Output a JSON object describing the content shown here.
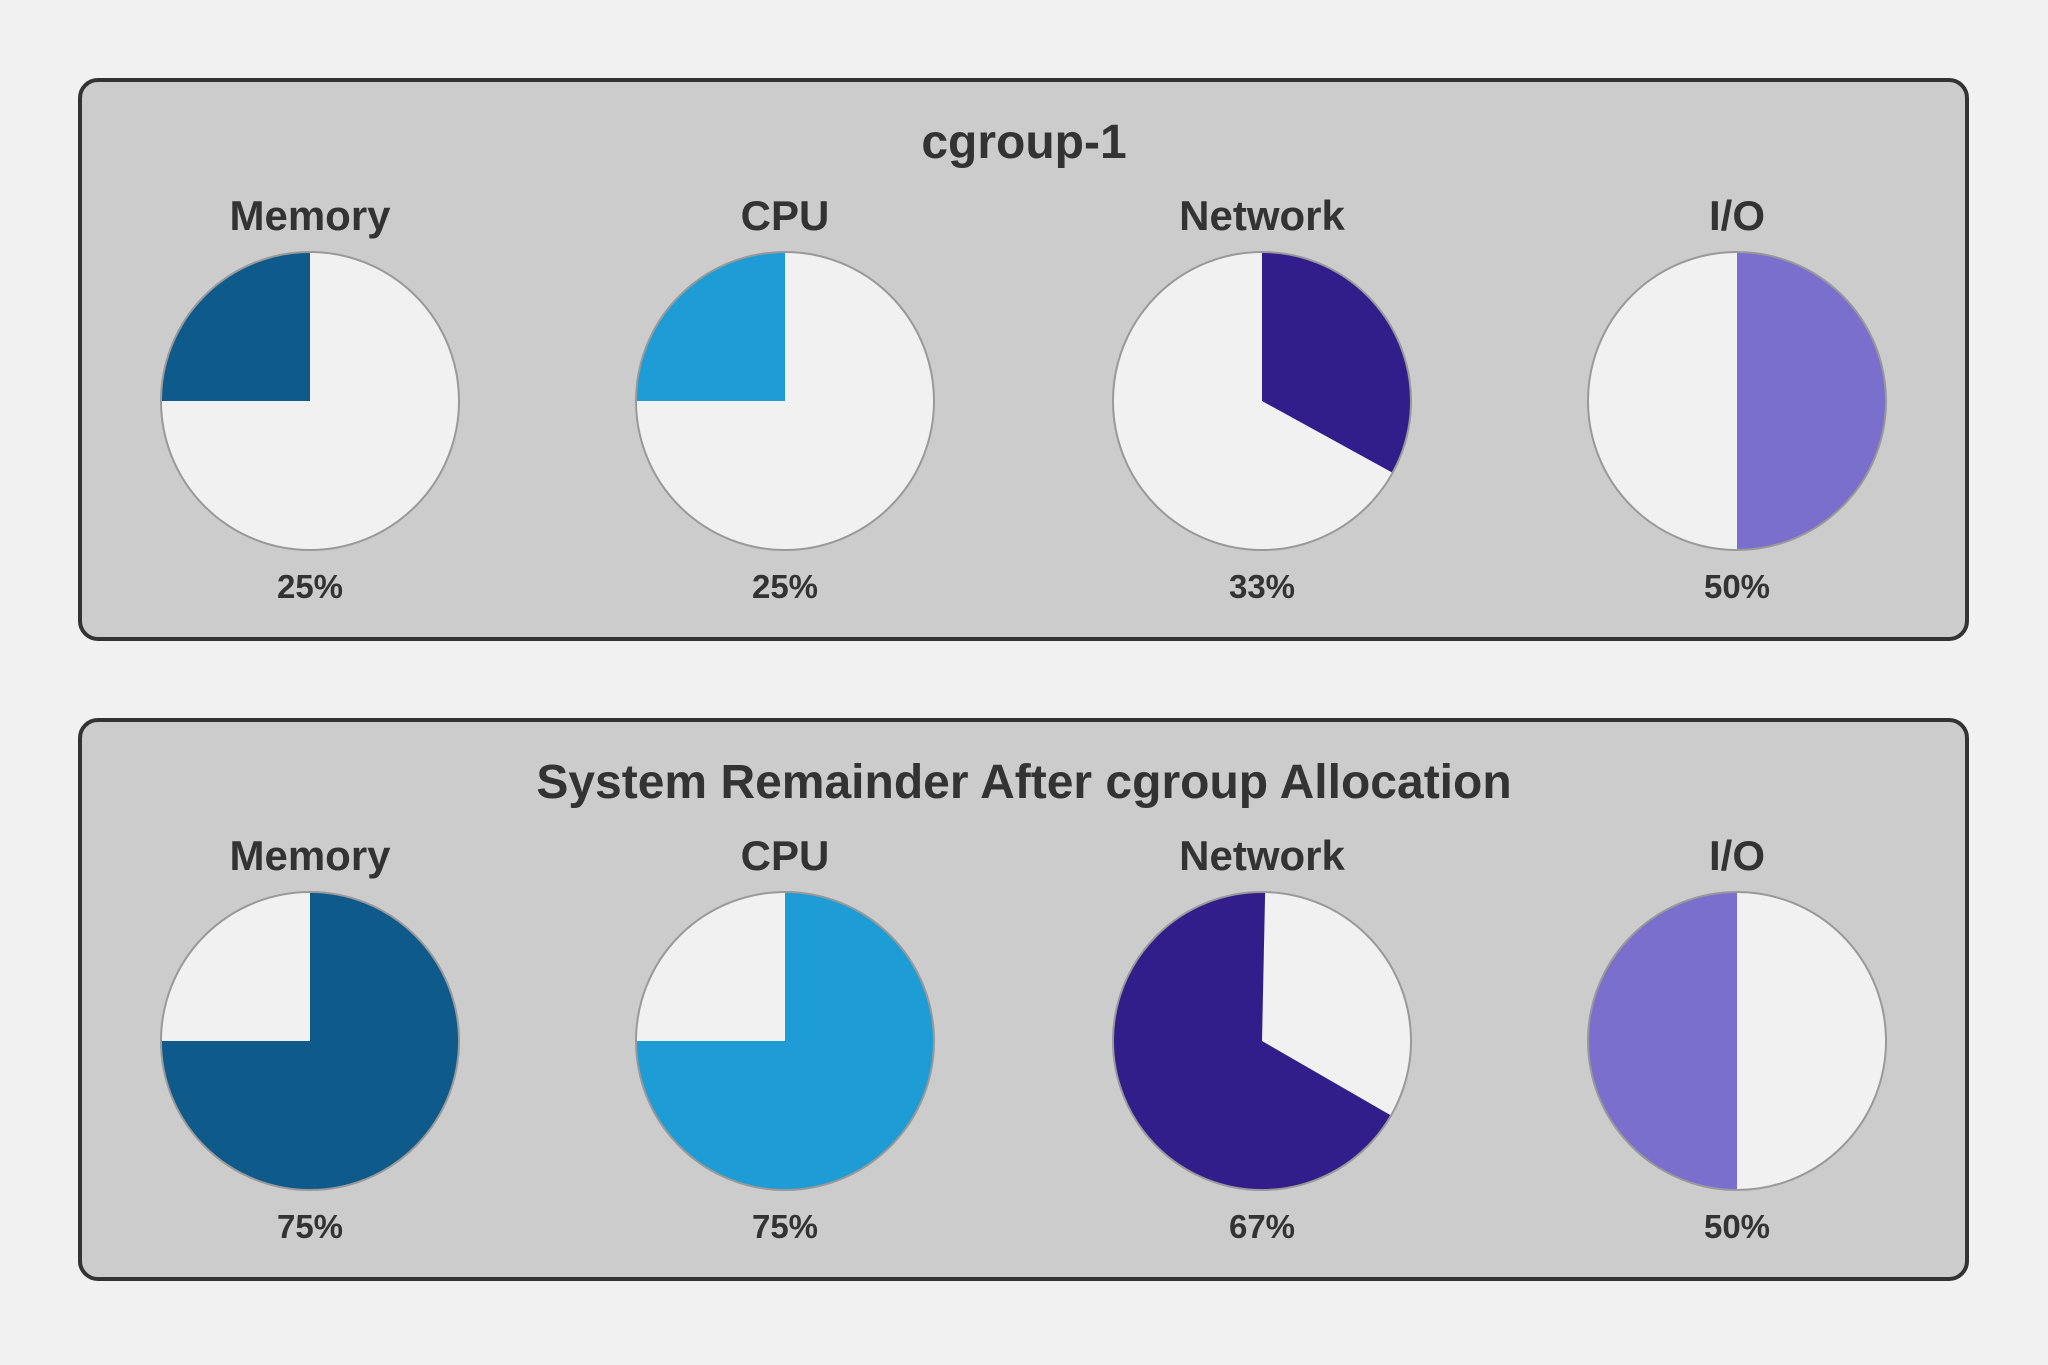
{
  "chart_data": [
    {
      "type": "pie",
      "title": "cgroup-1",
      "pies": [
        {
          "label": "Memory",
          "value": 25,
          "value_label": "25%",
          "color": "#0e5a8a"
        },
        {
          "label": "CPU",
          "value": 25,
          "value_label": "25%",
          "color": "#1e9cd6"
        },
        {
          "label": "Network",
          "value": 33,
          "value_label": "33%",
          "color": "#311e8a"
        },
        {
          "label": "I/O",
          "value": 50,
          "value_label": "50%",
          "color": "#7a6fcc"
        }
      ]
    },
    {
      "type": "pie",
      "title": "System Remainder After cgroup Allocation",
      "pies": [
        {
          "label": "Memory",
          "value": 75,
          "value_label": "75%",
          "color": "#0e5a8a"
        },
        {
          "label": "CPU",
          "value": 75,
          "value_label": "75%",
          "color": "#1e9cd6"
        },
        {
          "label": "Network",
          "value": 67,
          "value_label": "67%",
          "color": "#311e8a"
        },
        {
          "label": "I/O",
          "value": 50,
          "value_label": "50%",
          "color": "#7a6fcc"
        }
      ]
    }
  ],
  "colors": {
    "empty": "#f1f1f1",
    "panel": "#cccccc",
    "border": "#333333",
    "text": "#333333"
  }
}
